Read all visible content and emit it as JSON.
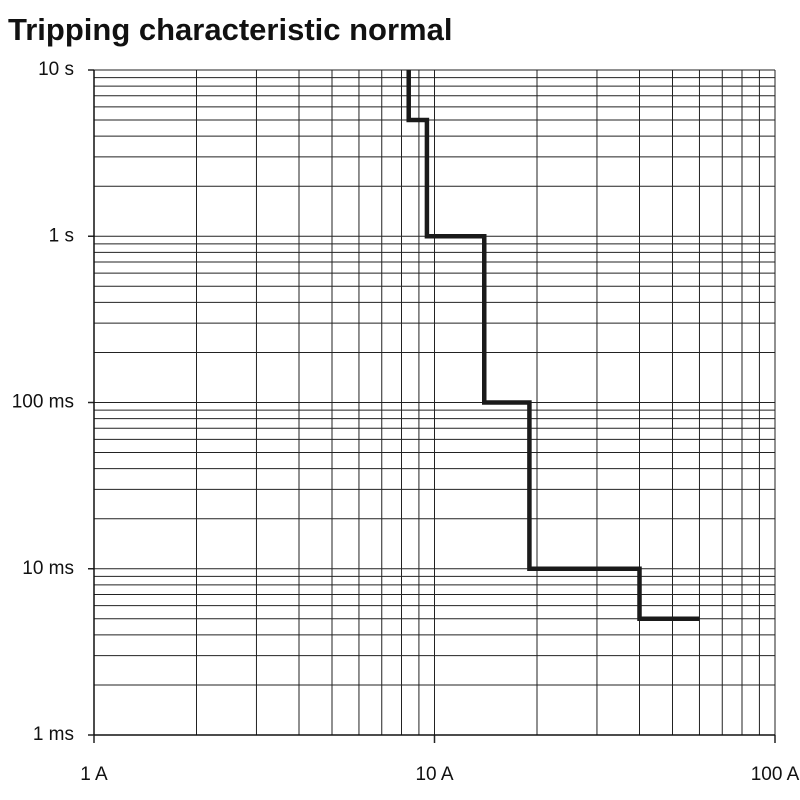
{
  "chart_data": {
    "type": "line",
    "title": "Tripping characteristic normal",
    "x": [
      8.4,
      8.4,
      9.5,
      9.5,
      14,
      14,
      19,
      19,
      40,
      40,
      60
    ],
    "values": [
      10,
      5,
      5,
      1,
      1,
      0.1,
      0.1,
      0.01,
      0.01,
      0.005,
      0.005
    ],
    "color": "#1a1a1a",
    "xlog": true,
    "ylog": true,
    "grid": true,
    "xlim": [
      1,
      100
    ],
    "xticks": [
      {
        "value": 1,
        "label": "1 A"
      },
      {
        "value": 10,
        "label": "10 A"
      },
      {
        "value": 100,
        "label": "100 A"
      }
    ],
    "ylim": [
      0.001,
      10
    ],
    "yticks": [
      {
        "value": 0.001,
        "label": "1 ms"
      },
      {
        "value": 0.01,
        "label": "10 ms"
      },
      {
        "value": 0.1,
        "label": "100 ms"
      },
      {
        "value": 1,
        "label": "1 s"
      },
      {
        "value": 10,
        "label": "10 s"
      }
    ]
  }
}
